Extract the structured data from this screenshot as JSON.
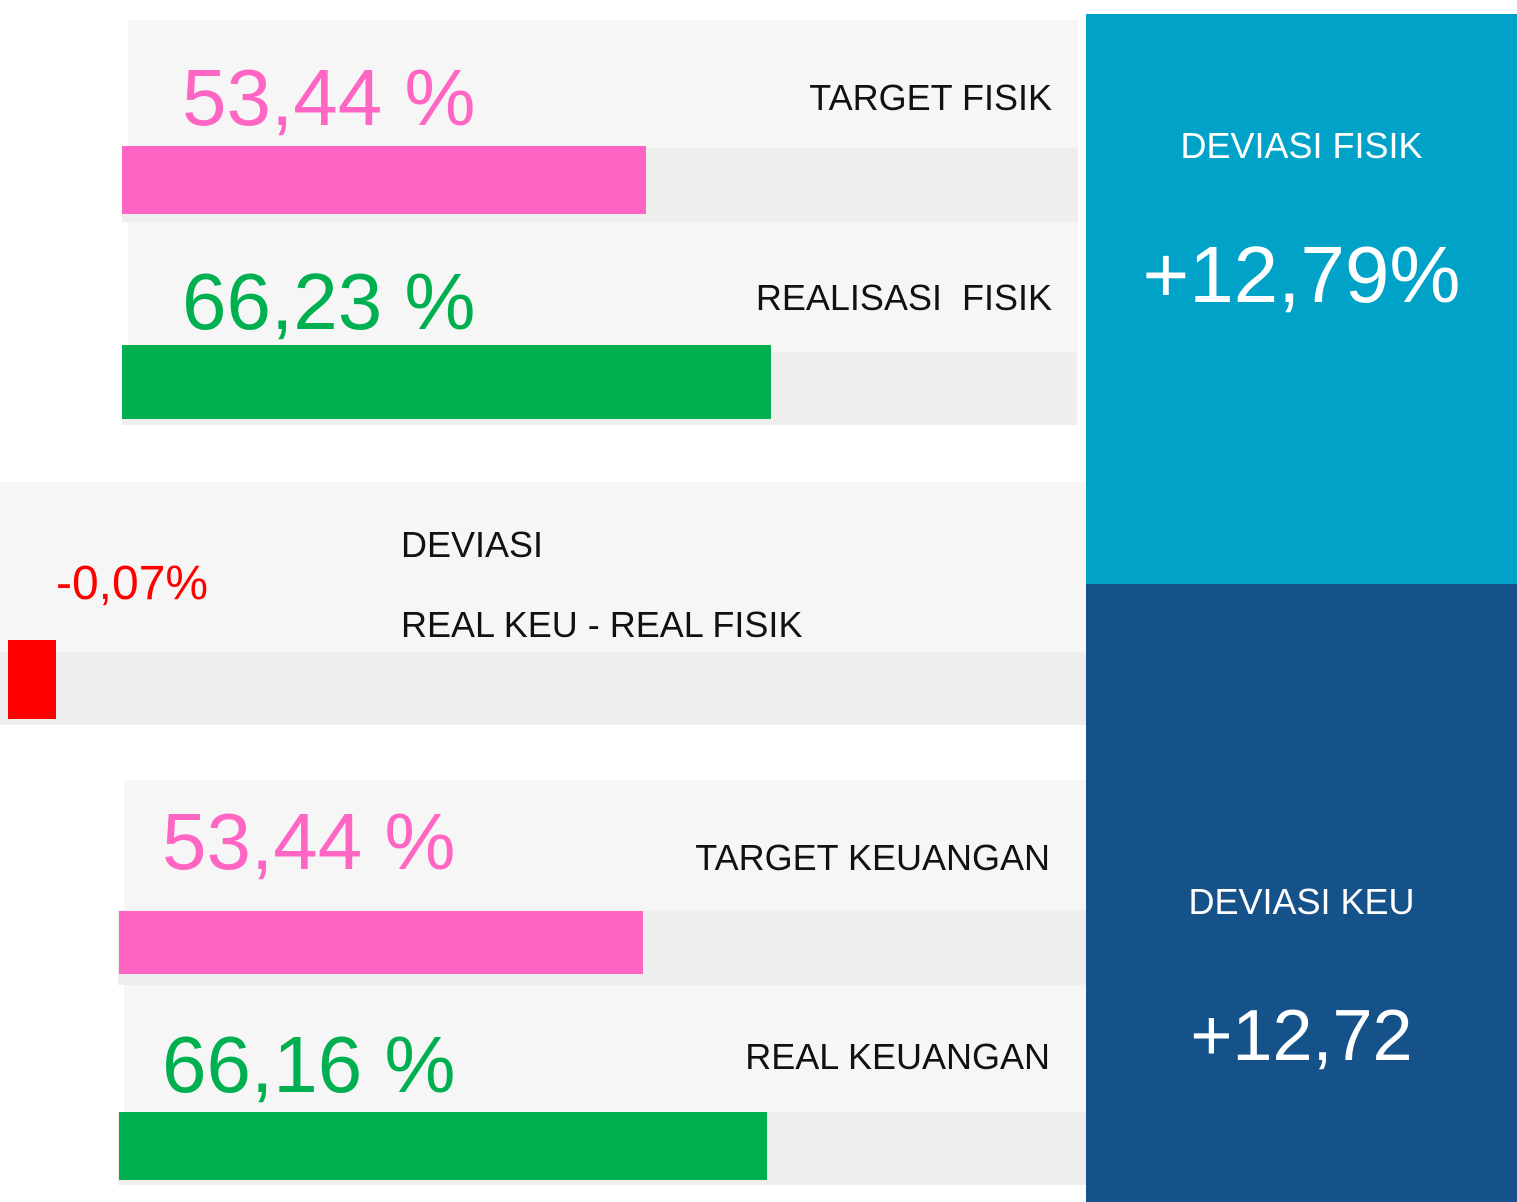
{
  "rows": [
    {
      "value_label": "53,44 %",
      "value": 53.44,
      "label": "TARGET FISIK",
      "color": "#ff66c4"
    },
    {
      "value_label": "66,23 %",
      "value": 66.23,
      "label": "REALISASI  FISIK",
      "color": "#00b050"
    },
    {
      "value_label": "-0,07%",
      "value": -0.07,
      "label": "DEVIASI",
      "label2": "REAL KEU - REAL FISIK",
      "color": "#ff0000"
    },
    {
      "value_label": "53,44 %",
      "value": 53.44,
      "label": "TARGET KEUANGAN",
      "color": "#ff66c4"
    },
    {
      "value_label": "66,16 %",
      "value": 66.16,
      "label": "REAL KEUANGAN",
      "color": "#00b050"
    }
  ],
  "panels": [
    {
      "title": "DEVIASI FISIK",
      "value": "+12,79%",
      "color": "#00a2c7"
    },
    {
      "title": "DEVIASI KEU",
      "value": "+12,72",
      "color": "#16528a"
    }
  ]
}
